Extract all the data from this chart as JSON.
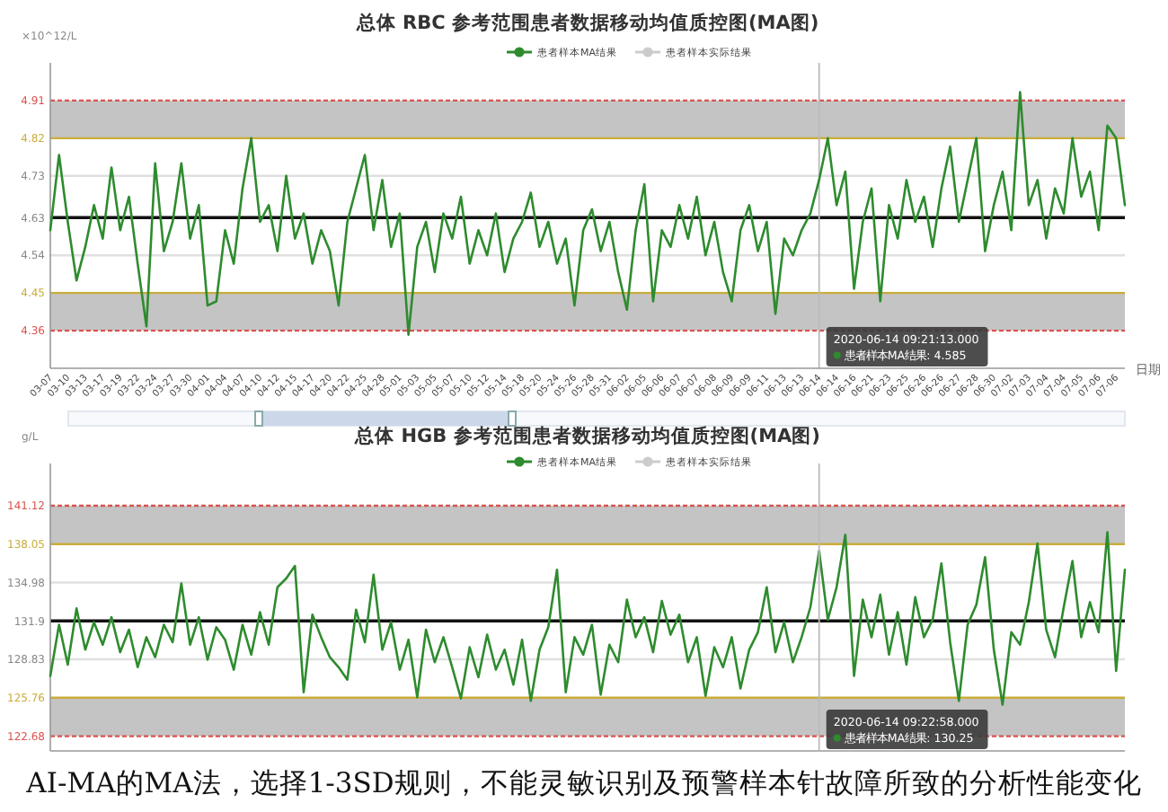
{
  "chart_data": [
    {
      "type": "line",
      "title": "总体  RBC 参考范围患者数据移动均值质控图(MA图)",
      "ylabel": "×10^12/L",
      "xlabel": "日期",
      "legend": "top",
      "categories": [
        "03-07",
        null,
        "03-10",
        null,
        "03-13",
        null,
        "03-17",
        null,
        "03-19",
        null,
        "03-22",
        null,
        "03-24",
        null,
        "03-27",
        null,
        "03-30",
        null,
        "04-01",
        null,
        "04-04",
        null,
        "04-07",
        null,
        "04-10",
        null,
        "04-12",
        null,
        "04-15",
        null,
        "04-17",
        null,
        "04-20",
        null,
        "04-22",
        null,
        "04-25",
        null,
        "04-28",
        null,
        "05-01",
        null,
        "05-03",
        null,
        "05-05",
        null,
        "05-07",
        null,
        "05-10",
        null,
        "05-12",
        null,
        "05-14",
        null,
        "05-18",
        null,
        "05-20",
        null,
        "05-24",
        null,
        "05-26",
        null,
        "05-28",
        null,
        "05-31",
        null,
        "06-02",
        null,
        "06-05",
        null,
        "06-06",
        null,
        "06-07",
        null,
        "06-07",
        null,
        "06-08",
        null,
        "06-09",
        null,
        "06-09",
        null,
        "06-11",
        null,
        "06-13",
        null,
        "06-13",
        null,
        "06-14",
        null,
        "06-14",
        null,
        "06-16",
        null,
        "06-21",
        null,
        "06-23",
        null,
        "06-25",
        null,
        "06-26",
        null,
        "06-26",
        null,
        "06-27",
        null,
        "06-28",
        null,
        "06-30",
        null,
        "07-02",
        null,
        "07-03",
        null,
        "07-04",
        null,
        "07-04",
        null,
        "07-05",
        null,
        "07-06",
        null,
        "07-06",
        null
      ],
      "ylim": [
        4.27,
        5.0
      ],
      "yticks": [
        4.36,
        4.45,
        4.54,
        4.63,
        4.73,
        4.82,
        4.91
      ],
      "series": [
        {
          "name": "患者样本MA结果",
          "color": "#2e8b2e",
          "values": [
            4.6,
            4.78,
            4.62,
            4.48,
            4.56,
            4.66,
            4.58,
            4.75,
            4.6,
            4.68,
            4.52,
            4.37,
            4.76,
            4.55,
            4.62,
            4.76,
            4.58,
            4.66,
            4.42,
            4.43,
            4.6,
            4.52,
            4.7,
            4.82,
            4.62,
            4.66,
            4.55,
            4.73,
            4.58,
            4.64,
            4.52,
            4.6,
            4.55,
            4.42,
            4.62,
            4.7,
            4.78,
            4.6,
            4.72,
            4.56,
            4.64,
            4.35,
            4.56,
            4.62,
            4.5,
            4.64,
            4.58,
            4.68,
            4.52,
            4.6,
            4.54,
            4.64,
            4.5,
            4.58,
            4.62,
            4.69,
            4.56,
            4.62,
            4.52,
            4.58,
            4.42,
            4.6,
            4.65,
            4.55,
            4.62,
            4.5,
            4.41,
            4.6,
            4.71,
            4.43,
            4.6,
            4.56,
            4.66,
            4.58,
            4.68,
            4.54,
            4.62,
            4.5,
            4.43,
            4.6,
            4.66,
            4.55,
            4.62,
            4.4,
            4.58,
            4.54,
            4.6,
            4.64,
            4.72,
            4.82,
            4.66,
            4.74,
            4.46,
            4.62,
            4.7,
            4.43,
            4.66,
            4.58,
            4.72,
            4.62,
            4.68,
            4.56,
            4.7,
            4.8,
            4.62,
            4.72,
            4.82,
            4.55,
            4.66,
            4.74,
            4.6,
            4.93,
            4.66,
            4.72,
            4.58,
            4.7,
            4.64,
            4.82,
            4.68,
            4.74,
            4.6,
            4.85,
            4.82,
            4.66
          ]
        },
        {
          "name": "患者样本实际结果",
          "color": "#cccccc",
          "values": [
            null,
            null,
            null,
            null,
            null,
            null,
            null,
            null,
            null,
            null,
            null,
            null,
            null,
            null,
            null,
            null,
            null,
            null,
            null,
            null,
            null,
            null,
            null,
            null,
            null,
            null,
            null,
            null,
            null,
            null,
            null,
            null,
            null,
            null,
            null,
            null,
            null,
            null,
            null,
            null,
            null,
            null,
            null,
            null,
            null,
            null,
            null,
            null,
            null,
            null,
            null,
            null,
            null,
            null,
            null,
            null,
            null,
            null,
            null,
            null,
            null,
            null,
            null,
            null,
            null,
            null,
            null,
            null,
            null,
            null,
            null,
            null,
            null,
            null,
            null,
            null,
            null,
            null,
            null,
            null,
            null,
            null,
            null,
            null,
            null,
            null,
            null,
            null,
            null,
            null,
            null,
            null,
            null,
            null,
            null,
            null,
            null,
            null,
            null,
            null,
            null,
            null,
            null,
            null,
            null,
            null,
            null,
            null,
            null,
            null,
            null,
            null,
            null,
            null,
            null,
            null,
            null,
            null,
            null,
            null,
            null,
            null,
            null,
            null
          ]
        }
      ],
      "bands": [
        {
          "axis": "y",
          "from": 4.82,
          "to": 4.91,
          "color": "#c4c4c4"
        },
        {
          "axis": "y",
          "from": 4.36,
          "to": 4.45,
          "color": "#c4c4c4"
        }
      ],
      "ref_lines": [
        {
          "axis": "y",
          "value": 4.91,
          "color": "#d9534f",
          "line_style": "dotted"
        },
        {
          "axis": "y",
          "value": 4.82,
          "color": "#c9ad3a",
          "line_style": "solid"
        },
        {
          "axis": "y",
          "value": 4.73,
          "color": "#e0e0e0",
          "line_style": "solid"
        },
        {
          "axis": "y",
          "value": 4.63,
          "color": "#111111",
          "line_style": "solid"
        },
        {
          "axis": "y",
          "value": 4.54,
          "color": "#e0e0e0",
          "line_style": "solid"
        },
        {
          "axis": "y",
          "value": 4.45,
          "color": "#c9ad3a",
          "line_style": "solid"
        },
        {
          "axis": "y",
          "value": 4.36,
          "color": "#d9534f",
          "line_style": "dotted"
        },
        {
          "axis": "x",
          "value": "06-14",
          "color": "#bbbbbb",
          "line_style": "solid"
        }
      ],
      "annotations": [
        "2020-06-14 09:21:13.000\n患者样本MA结果: 4.585"
      ]
    },
    {
      "type": "line",
      "title": "总体  HGB 参考范围患者数据移动均值质控图(MA图)",
      "ylabel": "g/L",
      "legend": "top",
      "tick_labels": "y",
      "categories": [
        null,
        null,
        null,
        null,
        null,
        null,
        null,
        null,
        null,
        null,
        null,
        null,
        null,
        null,
        null,
        null,
        null,
        null,
        null,
        null,
        null,
        null,
        null,
        null,
        null,
        null,
        null,
        null,
        null,
        null,
        null,
        null,
        null,
        null,
        null,
        null,
        null,
        null,
        null,
        null,
        null,
        null,
        null,
        null,
        null,
        null,
        null,
        null,
        null,
        null,
        null,
        null,
        null,
        null,
        null,
        null,
        null,
        null,
        null,
        null,
        null,
        null,
        null,
        null,
        null,
        null,
        null,
        null,
        null,
        null,
        null,
        null,
        null,
        null,
        null,
        null,
        null,
        null,
        null,
        null,
        null,
        null,
        null,
        null,
        null,
        null,
        null,
        null,
        null,
        null,
        null,
        null,
        null,
        null,
        null,
        null,
        null,
        null,
        null,
        null,
        null,
        null,
        null,
        null,
        null,
        null,
        null,
        null,
        null,
        null,
        null,
        null,
        null,
        null,
        null,
        null,
        null,
        null,
        null,
        null,
        null,
        null,
        null,
        null
      ],
      "ylim": [
        121.5,
        144.5
      ],
      "yticks": [
        122.68,
        125.76,
        128.83,
        131.9,
        134.98,
        138.05,
        141.12
      ],
      "series": [
        {
          "name": "患者样本MA结果",
          "color": "#2e8b2e",
          "values": [
            127.5,
            131.6,
            128.4,
            132.9,
            129.6,
            131.8,
            130.0,
            132.2,
            129.4,
            131.2,
            128.2,
            130.6,
            129.0,
            131.6,
            130.2,
            134.9,
            130.0,
            132.2,
            128.8,
            131.4,
            130.4,
            128.0,
            131.6,
            129.2,
            132.6,
            130.0,
            134.6,
            135.3,
            136.3,
            126.2,
            132.4,
            130.6,
            129.0,
            128.2,
            127.2,
            132.8,
            130.2,
            135.6,
            129.6,
            131.8,
            128.0,
            130.4,
            125.8,
            131.2,
            128.6,
            130.6,
            128.2,
            125.7,
            129.8,
            127.4,
            130.8,
            128.0,
            129.6,
            126.8,
            130.4,
            125.5,
            129.6,
            131.4,
            136.0,
            126.2,
            130.6,
            129.2,
            131.6,
            126.0,
            130.0,
            128.6,
            133.6,
            130.6,
            132.2,
            129.4,
            133.5,
            130.8,
            132.4,
            128.6,
            130.6,
            125.9,
            129.8,
            128.2,
            130.6,
            126.5,
            129.6,
            131.0,
            134.6,
            129.4,
            131.8,
            128.6,
            130.6,
            133.0,
            137.5,
            132.0,
            134.6,
            138.8,
            127.5,
            133.6,
            130.6,
            134.0,
            129.2,
            132.6,
            128.4,
            133.8,
            130.6,
            132.0,
            136.5,
            130.2,
            125.5,
            131.6,
            133.2,
            137.0,
            129.6,
            125.2,
            131.0,
            130.0,
            133.4,
            138.1,
            131.2,
            129.0,
            133.0,
            136.7,
            130.6,
            133.4,
            131.0,
            139.0,
            127.9,
            136.0
          ]
        },
        {
          "name": "患者样本实际结果",
          "color": "#cccccc",
          "values": [
            null,
            null,
            null,
            null,
            null,
            null,
            null,
            null,
            null,
            null,
            null,
            null,
            null,
            null,
            null,
            null,
            null,
            null,
            null,
            null,
            null,
            null,
            null,
            null,
            null,
            null,
            null,
            null,
            null,
            null,
            null,
            null,
            null,
            null,
            null,
            null,
            null,
            null,
            null,
            null,
            null,
            null,
            null,
            null,
            null,
            null,
            null,
            null,
            null,
            null,
            null,
            null,
            null,
            null,
            null,
            null,
            null,
            null,
            null,
            null,
            null,
            null,
            null,
            null,
            null,
            null,
            null,
            null,
            null,
            null,
            null,
            null,
            null,
            null,
            null,
            null,
            null,
            null,
            null,
            null,
            null,
            null,
            null,
            null,
            null,
            null,
            null,
            null,
            null,
            null,
            null,
            null,
            null,
            null,
            null,
            null,
            null,
            null,
            null,
            null,
            null,
            null,
            null,
            null,
            null,
            null,
            null,
            null,
            null,
            null,
            null,
            null,
            null,
            null,
            null,
            null,
            null,
            null,
            null,
            null,
            null,
            null,
            null,
            null
          ]
        }
      ],
      "bands": [
        {
          "axis": "y",
          "from": 138.05,
          "to": 141.12,
          "color": "#c4c4c4"
        },
        {
          "axis": "y",
          "from": 122.68,
          "to": 125.76,
          "color": "#c4c4c4"
        }
      ],
      "ref_lines": [
        {
          "axis": "y",
          "value": 141.12,
          "color": "#d9534f",
          "line_style": "dotted"
        },
        {
          "axis": "y",
          "value": 138.05,
          "color": "#c9ad3a",
          "line_style": "solid"
        },
        {
          "axis": "y",
          "value": 134.98,
          "color": "#e0e0e0",
          "line_style": "solid"
        },
        {
          "axis": "y",
          "value": 131.9,
          "color": "#111111",
          "line_style": "solid"
        },
        {
          "axis": "y",
          "value": 128.83,
          "color": "#e0e0e0",
          "line_style": "solid"
        },
        {
          "axis": "y",
          "value": 125.76,
          "color": "#c9ad3a",
          "line_style": "solid"
        },
        {
          "axis": "y",
          "value": 122.68,
          "color": "#d9534f",
          "line_style": "dotted"
        }
      ],
      "annotations": [
        "2020-06-14 09:22:58.000\n患者样本MA结果: 130.25",
        "AI-MA的MA法，选择1-3SD规则，不能灵敏识别及预警样本针故障所致的分析性能变化"
      ]
    }
  ]
}
